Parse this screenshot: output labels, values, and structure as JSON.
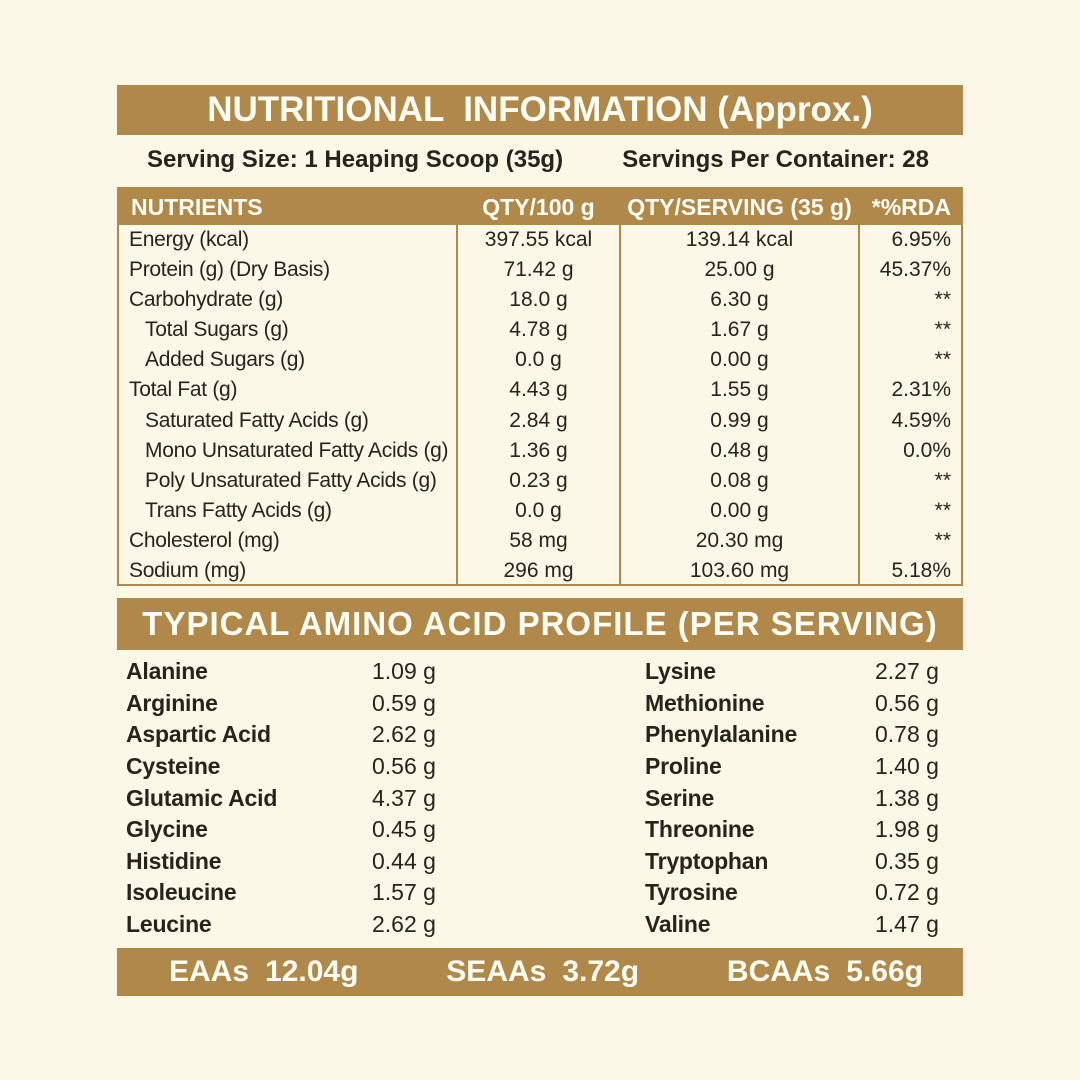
{
  "colors": {
    "gold": "#b0894a",
    "background": "#fcf8e8",
    "text": "#26241c"
  },
  "header": {
    "title": "NUTRITIONAL  INFORMATION (Approx.)"
  },
  "serving": {
    "size": "Serving Size: 1 Heaping Scoop (35g)",
    "per_container": "Servings Per Container: 28"
  },
  "nutrition_table": {
    "columns": [
      "NUTRIENTS",
      "QTY/100 g",
      "QTY/SERVING (35 g)",
      "*%RDA"
    ],
    "rows": [
      {
        "name": "Energy (kcal)",
        "indent": false,
        "qty100": "397.55 kcal",
        "qtyServing": "139.14 kcal",
        "rda": "6.95%"
      },
      {
        "name": "Protein (g) (Dry Basis)",
        "indent": false,
        "qty100": "71.42 g",
        "qtyServing": "25.00 g",
        "rda": "45.37%"
      },
      {
        "name": "Carbohydrate (g)",
        "indent": false,
        "qty100": "18.0 g",
        "qtyServing": "6.30 g",
        "rda": "**"
      },
      {
        "name": "Total Sugars (g)",
        "indent": true,
        "qty100": "4.78 g",
        "qtyServing": "1.67 g",
        "rda": "**"
      },
      {
        "name": "Added Sugars (g)",
        "indent": true,
        "qty100": "0.0 g",
        "qtyServing": "0.00 g",
        "rda": "**"
      },
      {
        "name": "Total Fat (g)",
        "indent": false,
        "qty100": "4.43 g",
        "qtyServing": "1.55 g",
        "rda": "2.31%"
      },
      {
        "name": "Saturated Fatty Acids (g)",
        "indent": true,
        "qty100": "2.84 g",
        "qtyServing": "0.99 g",
        "rda": "4.59%"
      },
      {
        "name": "Mono Unsaturated Fatty Acids (g)",
        "indent": true,
        "qty100": "1.36 g",
        "qtyServing": "0.48 g",
        "rda": "0.0%"
      },
      {
        "name": "Poly Unsaturated Fatty Acids (g)",
        "indent": true,
        "qty100": "0.23 g",
        "qtyServing": "0.08 g",
        "rda": "**"
      },
      {
        "name": "Trans Fatty Acids (g)",
        "indent": true,
        "qty100": "0.0 g",
        "qtyServing": "0.00 g",
        "rda": "**"
      },
      {
        "name": "Cholesterol (mg)",
        "indent": false,
        "qty100": "58 mg",
        "qtyServing": "20.30 mg",
        "rda": "**"
      },
      {
        "name": "Sodium (mg)",
        "indent": false,
        "qty100": "296 mg",
        "qtyServing": "103.60 mg",
        "rda": "5.18%"
      }
    ]
  },
  "amino_section": {
    "title": "TYPICAL AMINO ACID PROFILE (PER SERVING)",
    "left": [
      {
        "name": "Alanine",
        "value": "1.09 g"
      },
      {
        "name": "Arginine",
        "value": "0.59 g"
      },
      {
        "name": "Aspartic Acid",
        "value": "2.62 g"
      },
      {
        "name": "Cysteine",
        "value": "0.56 g"
      },
      {
        "name": "Glutamic Acid",
        "value": "4.37 g"
      },
      {
        "name": "Glycine",
        "value": "0.45 g"
      },
      {
        "name": "Histidine",
        "value": "0.44 g"
      },
      {
        "name": "Isoleucine",
        "value": "1.57 g"
      },
      {
        "name": "Leucine",
        "value": "2.62 g"
      }
    ],
    "right": [
      {
        "name": "Lysine",
        "value": "2.27 g"
      },
      {
        "name": "Methionine",
        "value": "0.56 g"
      },
      {
        "name": "Phenylalanine",
        "value": "0.78 g"
      },
      {
        "name": "Proline",
        "value": "1.40 g"
      },
      {
        "name": "Serine",
        "value": "1.38 g"
      },
      {
        "name": "Threonine",
        "value": "1.98 g"
      },
      {
        "name": "Tryptophan",
        "value": "0.35 g"
      },
      {
        "name": "Tyrosine",
        "value": "0.72 g"
      },
      {
        "name": "Valine",
        "value": "1.47 g"
      }
    ]
  },
  "summary": {
    "items": [
      {
        "label": "EAAs",
        "value": "12.04g"
      },
      {
        "label": "SEAAs",
        "value": "3.72g"
      },
      {
        "label": "BCAAs",
        "value": "5.66g"
      }
    ]
  }
}
